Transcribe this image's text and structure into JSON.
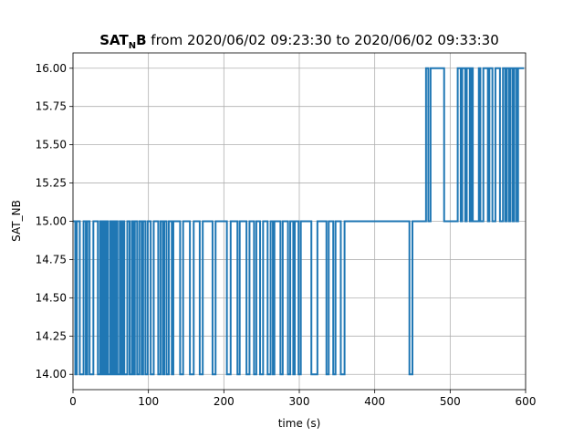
{
  "chart_data": {
    "type": "step",
    "title": {
      "base": "SAT",
      "sub": "N",
      "tail": "B",
      "text": " from 2020/06/02 09:23:30 to 2020/06/02 09:33:30"
    },
    "x_label": "time (s)",
    "y_label": "SAT_NB",
    "series": [
      {
        "name": "SAT_NB",
        "color": "#1f77b4",
        "x": [
          0,
          3,
          5,
          9,
          14,
          17,
          19,
          22,
          27,
          33,
          36,
          38,
          40,
          42,
          44,
          46,
          49,
          51,
          53,
          55,
          57,
          59,
          62,
          64,
          66,
          68,
          72,
          75,
          78,
          80,
          82,
          85,
          88,
          91,
          93,
          96,
          99,
          103,
          107,
          113,
          116,
          119,
          121,
          124,
          127,
          131,
          133,
          142,
          146,
          155,
          160,
          168,
          172,
          185,
          189,
          204,
          209,
          218,
          221,
          230,
          234,
          240,
          243,
          248,
          252,
          258,
          262,
          265,
          267,
          275,
          278,
          285,
          288,
          292,
          294,
          299,
          302,
          316,
          324,
          336,
          339,
          345,
          348,
          355,
          360,
          446,
          450,
          468,
          471,
          474,
          492,
          510,
          514,
          516,
          520,
          522,
          526,
          528,
          530,
          538,
          540,
          544,
          550,
          552,
          556,
          560,
          566,
          570,
          573,
          575,
          578,
          580,
          583,
          585,
          588,
          590,
          598
        ],
        "values": [
          15,
          14,
          15,
          14,
          15,
          14,
          15,
          14,
          15,
          14,
          15,
          14,
          15,
          14,
          15,
          14,
          15,
          14,
          15,
          14,
          15,
          14,
          15,
          14,
          15,
          14,
          15,
          14,
          15,
          14,
          15,
          14,
          15,
          14,
          15,
          14,
          15,
          14,
          15,
          14,
          15,
          14,
          15,
          14,
          15,
          14,
          15,
          14,
          15,
          14,
          15,
          14,
          15,
          14,
          15,
          14,
          15,
          14,
          15,
          14,
          15,
          14,
          15,
          14,
          15,
          14,
          15,
          14,
          15,
          14,
          15,
          14,
          15,
          14,
          15,
          14,
          15,
          14,
          15,
          14,
          15,
          14,
          15,
          14,
          15,
          14,
          15,
          16,
          15,
          16,
          15,
          16,
          15,
          16,
          15,
          16,
          15,
          16,
          15,
          16,
          15,
          16,
          15,
          16,
          15,
          16,
          15,
          16,
          15,
          16,
          15,
          16,
          15,
          16,
          15,
          16,
          16
        ]
      }
    ],
    "xlim": [
      0,
      600
    ],
    "xticks": [
      0,
      100,
      200,
      300,
      400,
      500,
      600
    ],
    "ylim": [
      13.9,
      16.1
    ],
    "yticks": [
      {
        "value": 14,
        "label": "14.00"
      },
      {
        "value": 14.25,
        "label": "14.25"
      },
      {
        "value": 14.5,
        "label": "14.50"
      },
      {
        "value": 14.75,
        "label": "14.75"
      },
      {
        "value": 15,
        "label": "15.00"
      },
      {
        "value": 15.25,
        "label": "15.25"
      },
      {
        "value": 15.5,
        "label": "15.50"
      },
      {
        "value": 15.75,
        "label": "15.75"
      },
      {
        "value": 16,
        "label": "16.00"
      }
    ],
    "grid": true
  }
}
